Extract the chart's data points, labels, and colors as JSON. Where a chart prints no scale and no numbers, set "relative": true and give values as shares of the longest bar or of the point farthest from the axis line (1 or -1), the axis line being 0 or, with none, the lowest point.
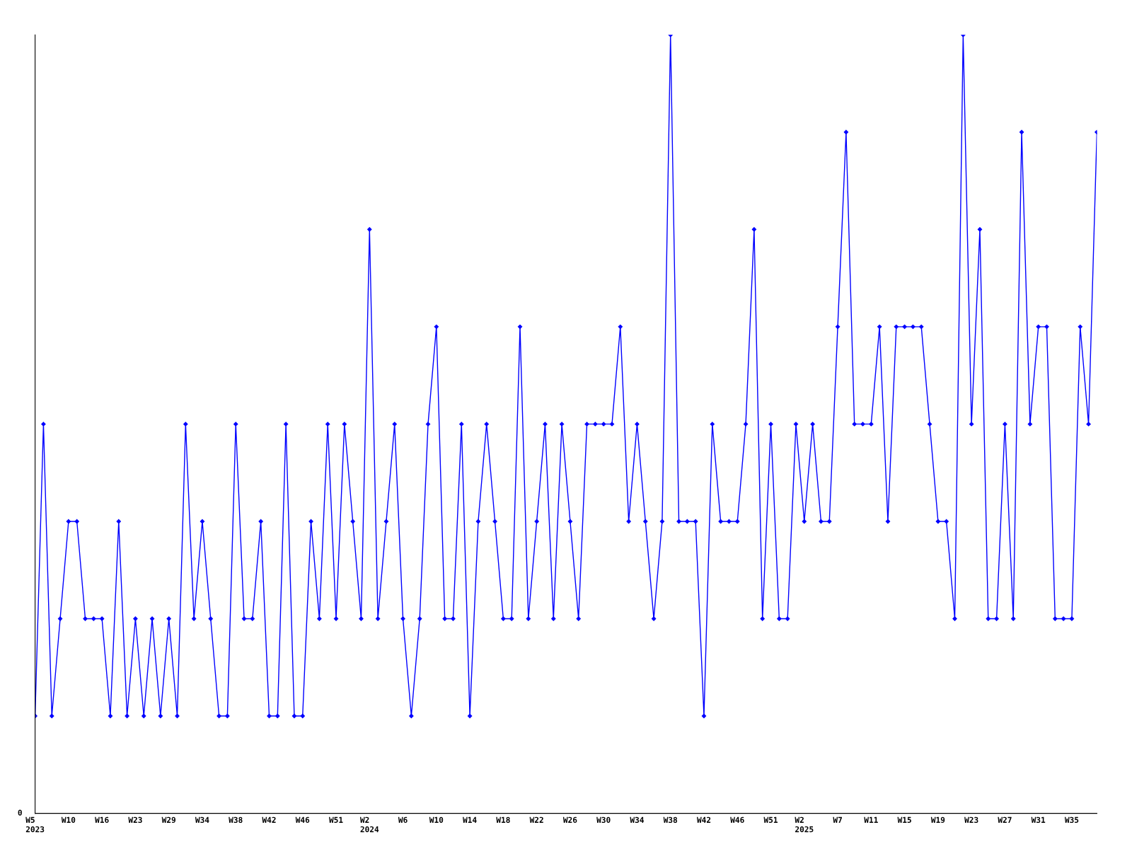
{
  "chart_data": {
    "type": "line",
    "relative": true,
    "color": "#0000ff",
    "marker": "diamond",
    "line_style": "solid",
    "grid": false,
    "legend": false,
    "annotations": [
      "0"
    ],
    "categories": [
      "W5\n2023",
      null,
      null,
      null,
      "W10",
      null,
      null,
      null,
      "W16",
      null,
      null,
      null,
      "W23",
      null,
      null,
      null,
      "W29",
      null,
      null,
      null,
      "W34",
      null,
      null,
      null,
      "W38",
      null,
      null,
      null,
      "W42",
      null,
      null,
      null,
      "W46",
      null,
      null,
      null,
      "W51",
      null,
      null,
      null,
      "W2\n2024",
      null,
      null,
      null,
      "W6",
      null,
      null,
      null,
      "W10",
      null,
      null,
      null,
      "W14",
      null,
      null,
      null,
      "W18",
      null,
      null,
      null,
      "W22",
      null,
      null,
      null,
      "W26",
      null,
      null,
      null,
      "W30",
      null,
      null,
      null,
      "W34",
      null,
      null,
      null,
      "W38",
      null,
      null,
      null,
      "W42",
      null,
      null,
      null,
      "W46",
      null,
      null,
      null,
      "W51",
      null,
      null,
      null,
      "W2\n2025",
      null,
      null,
      null,
      "W7",
      null,
      null,
      null,
      "W11",
      null,
      null,
      null,
      "W15",
      null,
      null,
      null,
      "W19",
      null,
      null,
      null,
      "W23",
      null,
      null,
      null,
      "W27",
      null,
      null,
      null,
      "W31",
      null,
      null,
      null,
      "W35",
      null,
      null,
      null
    ],
    "values": [
      0.125,
      0.5,
      0.125,
      0.25,
      0.375,
      0.375,
      0.25,
      0.25,
      0.25,
      0.125,
      0.375,
      0.125,
      0.25,
      0.125,
      0.25,
      0.125,
      0.25,
      0.125,
      0.5,
      0.25,
      0.375,
      0.25,
      0.125,
      0.125,
      0.5,
      0.25,
      0.25,
      0.375,
      0.125,
      0.125,
      0.5,
      0.125,
      0.125,
      0.375,
      0.25,
      0.5,
      0.25,
      0.5,
      0.375,
      0.25,
      0.75,
      0.25,
      0.375,
      0.5,
      0.25,
      0.125,
      0.25,
      0.5,
      0.625,
      0.25,
      0.25,
      0.5,
      0.125,
      0.375,
      0.5,
      0.375,
      0.25,
      0.25,
      0.625,
      0.25,
      0.375,
      0.5,
      0.25,
      0.5,
      0.375,
      0.25,
      0.5,
      0.5,
      0.5,
      0.5,
      0.625,
      0.375,
      0.5,
      0.375,
      0.25,
      0.375,
      1,
      0.375,
      0.375,
      0.375,
      0.125,
      0.5,
      0.375,
      0.375,
      0.375,
      0.5,
      0.75,
      0.25,
      0.5,
      0.25,
      0.25,
      0.5,
      0.375,
      0.5,
      0.375,
      0.375,
      0.625,
      0.875,
      0.5,
      0.5,
      0.5,
      0.625,
      0.375,
      0.625,
      0.625,
      0.625,
      0.625,
      0.5,
      0.375,
      0.375,
      0.25,
      1,
      0.5,
      0.75,
      0.25,
      0.25,
      0.5,
      0.25,
      0.875,
      0.5,
      0.625,
      0.625,
      0.25,
      0.25,
      0.25,
      0.625,
      0.5,
      0.875
    ]
  }
}
